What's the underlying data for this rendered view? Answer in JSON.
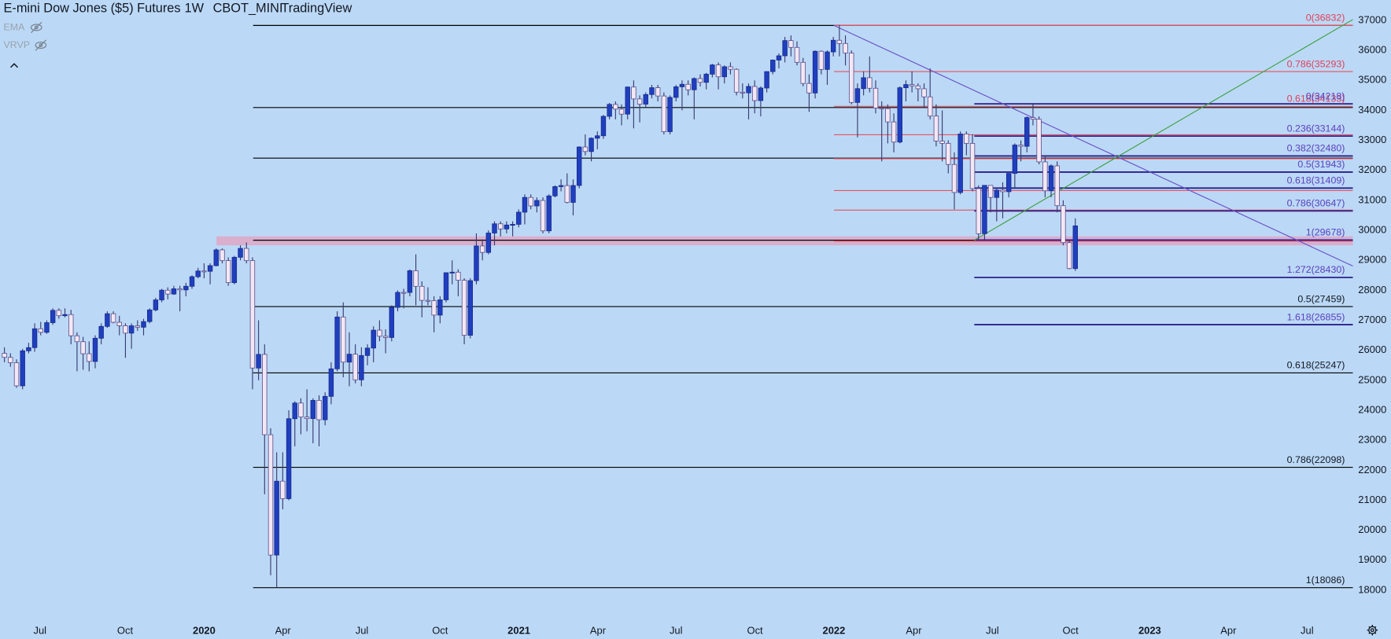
{
  "chart_data": {
    "type": "candlestick",
    "header": {
      "title": "E-mini Dow Jones ($5) Futures",
      "interval": "1W",
      "exchange": "CBOT_MINI",
      "source": "TradingView"
    },
    "indicators": [
      "EMA",
      "VRVP"
    ],
    "up_color": "#1f3fbf",
    "down_color": "#f3e7f3",
    "wick_color": "#3a3a70",
    "xlim": [
      -0.733,
      222.87
    ],
    "ylim": [
      17084,
      37680
    ],
    "xticks": [
      {
        "value": 5.87,
        "label": "Jul"
      },
      {
        "value": 19.94,
        "label": "Oct"
      },
      {
        "value": 33.0,
        "label": "2020"
      },
      {
        "value": 46.04,
        "label": "Apr"
      },
      {
        "value": 59.09,
        "label": "Jul"
      },
      {
        "value": 72.0,
        "label": "Oct"
      },
      {
        "value": 85.04,
        "label": "2021"
      },
      {
        "value": 98.09,
        "label": "Apr"
      },
      {
        "value": 111.0,
        "label": "Jul"
      },
      {
        "value": 124.05,
        "label": "Oct"
      },
      {
        "value": 137.1,
        "label": "2022"
      },
      {
        "value": 150.3,
        "label": "Apr"
      },
      {
        "value": 163.3,
        "label": "Jul"
      },
      {
        "value": 176.2,
        "label": "Oct"
      },
      {
        "value": 189.3,
        "label": "2023"
      },
      {
        "value": 202.3,
        "label": "Apr"
      },
      {
        "value": 215.3,
        "label": "Jul"
      }
    ],
    "yticks": [
      18000,
      19000,
      20000,
      21000,
      22000,
      23000,
      24000,
      25000,
      26000,
      27000,
      28000,
      29000,
      30000,
      31000,
      32000,
      33000,
      34000,
      35000,
      36000,
      37000
    ],
    "zones": [
      {
        "from": 29500,
        "to": 29800,
        "x_start": 35.05,
        "color": "#dfa6c6"
      }
    ],
    "trendlines": [
      {
        "x": [
          137.1,
          222.87
        ],
        "y": [
          36832,
          28810
        ],
        "color": "#6a4fc8"
      },
      {
        "x": [
          160.3,
          222.87
        ],
        "y": [
          29670,
          37030
        ],
        "color": "#3f9f3f"
      }
    ],
    "fib_sets": [
      {
        "color": "#000000",
        "label_color": "#131722",
        "x_start": 41.1,
        "levels": [
          {
            "value": 36832
          },
          {
            "value": 34095
          },
          {
            "value": 32408
          },
          {
            "value": 29671
          },
          {
            "value": 27459,
            "label": "0.5(27459)"
          },
          {
            "value": 25247,
            "label": "0.618(25247)"
          },
          {
            "value": 22098,
            "label": "0.786(22098)"
          },
          {
            "value": 18086,
            "label": "1(18086)"
          }
        ]
      },
      {
        "color": "#e8505f",
        "label_color": "#e0405a",
        "x_start": 137.1,
        "levels": [
          {
            "value": 36832,
            "label": "0(36832)"
          },
          {
            "value": 35293,
            "label": "0.786(35293)"
          },
          {
            "value": 34133,
            "label": "0.618(34133)"
          },
          {
            "value": 33188
          },
          {
            "value": 32390
          },
          {
            "value": 31326
          },
          {
            "value": 30676
          },
          {
            "value": 29640
          }
        ]
      },
      {
        "color": "#2b1f8a",
        "label_color": "#5b3fbf",
        "x_start": 160.3,
        "levels": [
          {
            "value": 34218,
            "label": "0(34218)"
          },
          {
            "value": 33144,
            "label": "0.236(33144)"
          },
          {
            "value": 32480,
            "label": "0.382(32480)"
          },
          {
            "value": 31943,
            "label": "0.5(31943)"
          },
          {
            "value": 31409,
            "label": "0.618(31409)"
          },
          {
            "value": 30647,
            "label": "0.786(30647)"
          },
          {
            "value": 29678,
            "label": "1(29678)"
          },
          {
            "value": 28430,
            "label": "1.272(28430)"
          },
          {
            "value": 26855,
            "label": "1.618(26855)"
          }
        ]
      }
    ],
    "ohlc": [
      [
        25900,
        26100,
        25600,
        25764
      ],
      [
        25764,
        25900,
        25450,
        25586
      ],
      [
        25586,
        25700,
        24750,
        24815
      ],
      [
        24815,
        26050,
        24700,
        25983
      ],
      [
        25983,
        26250,
        25900,
        26090
      ],
      [
        26090,
        26900,
        25950,
        26719
      ],
      [
        26719,
        26950,
        26500,
        26600
      ],
      [
        26600,
        27000,
        26550,
        26922
      ],
      [
        26922,
        27400,
        26850,
        27332
      ],
      [
        27332,
        27400,
        27050,
        27154
      ],
      [
        27154,
        27400,
        27100,
        27192
      ],
      [
        27192,
        27350,
        26200,
        26485
      ],
      [
        26485,
        26600,
        25300,
        26287
      ],
      [
        26287,
        26450,
        25350,
        25886
      ],
      [
        25886,
        26300,
        25300,
        25628
      ],
      [
        25628,
        26500,
        25400,
        26403
      ],
      [
        26403,
        26900,
        26200,
        26797
      ],
      [
        26797,
        27300,
        26750,
        27220
      ],
      [
        27220,
        27300,
        26900,
        26935
      ],
      [
        26935,
        27150,
        26500,
        26820
      ],
      [
        26820,
        26900,
        25750,
        26573
      ],
      [
        26573,
        26900,
        26050,
        26817
      ],
      [
        26817,
        27000,
        26650,
        26770
      ],
      [
        26770,
        27050,
        26500,
        26958
      ],
      [
        26958,
        27400,
        26900,
        27347
      ],
      [
        27347,
        27750,
        27300,
        27681
      ],
      [
        27681,
        28050,
        27600,
        28005
      ],
      [
        28005,
        28100,
        27700,
        27876
      ],
      [
        27876,
        28150,
        27850,
        28051
      ],
      [
        28051,
        28150,
        27300,
        28015
      ],
      [
        28015,
        28250,
        27800,
        28135
      ],
      [
        28135,
        28500,
        28050,
        28455
      ],
      [
        28455,
        28750,
        28400,
        28645
      ],
      [
        28645,
        28900,
        28400,
        28634
      ],
      [
        28634,
        28900,
        28200,
        28823
      ],
      [
        28823,
        29400,
        28800,
        29348
      ],
      [
        29348,
        29400,
        28900,
        28990
      ],
      [
        28990,
        29100,
        28150,
        28256
      ],
      [
        28256,
        29150,
        28200,
        29102
      ],
      [
        29102,
        29500,
        29000,
        29398
      ],
      [
        29398,
        29600,
        28900,
        28992
      ],
      [
        28992,
        29100,
        24700,
        25409
      ],
      [
        25409,
        27000,
        25000,
        25864
      ],
      [
        25864,
        26200,
        21200,
        23186
      ],
      [
        23186,
        23400,
        18500,
        19174
      ],
      [
        19174,
        22600,
        18086,
        21636
      ],
      [
        21636,
        22600,
        20700,
        21053
      ],
      [
        21053,
        24000,
        21000,
        23719
      ],
      [
        23719,
        24300,
        22800,
        24242
      ],
      [
        24242,
        24400,
        23200,
        23775
      ],
      [
        23775,
        24700,
        23300,
        23724
      ],
      [
        23724,
        24400,
        22900,
        24331
      ],
      [
        24331,
        24500,
        22800,
        23685
      ],
      [
        23685,
        24600,
        23500,
        24465
      ],
      [
        24465,
        25600,
        24200,
        25383
      ],
      [
        25383,
        27300,
        25300,
        27111
      ],
      [
        27111,
        27600,
        25100,
        25606
      ],
      [
        25606,
        26600,
        24800,
        25871
      ],
      [
        25871,
        26200,
        24900,
        25016
      ],
      [
        25016,
        26100,
        24800,
        25827
      ],
      [
        25827,
        26200,
        25500,
        26075
      ],
      [
        26075,
        26800,
        25600,
        26672
      ],
      [
        26672,
        27000,
        26300,
        26470
      ],
      [
        26470,
        26700,
        25900,
        26428
      ],
      [
        26428,
        27500,
        26300,
        27433
      ],
      [
        27433,
        28000,
        27300,
        27931
      ],
      [
        27931,
        28050,
        27400,
        27930
      ],
      [
        27930,
        28700,
        27800,
        28654
      ],
      [
        28654,
        29200,
        27500,
        28133
      ],
      [
        28133,
        28300,
        27100,
        27666
      ],
      [
        27666,
        28100,
        27500,
        27657
      ],
      [
        27657,
        27800,
        26600,
        27174
      ],
      [
        27174,
        27800,
        26900,
        27683
      ],
      [
        27683,
        28600,
        27600,
        28587
      ],
      [
        28587,
        29000,
        28200,
        28606
      ],
      [
        28606,
        28700,
        27800,
        28335
      ],
      [
        28335,
        28400,
        26200,
        26502
      ],
      [
        26502,
        28400,
        26400,
        28323
      ],
      [
        28323,
        29900,
        28200,
        29480
      ],
      [
        29480,
        29700,
        29000,
        29263
      ],
      [
        29263,
        30000,
        29200,
        29910
      ],
      [
        29910,
        30300,
        29500,
        30218
      ],
      [
        30218,
        30300,
        29800,
        30046
      ],
      [
        30046,
        30300,
        29900,
        30179
      ],
      [
        30179,
        30300,
        29800,
        30200
      ],
      [
        30200,
        30700,
        30100,
        30606
      ],
      [
        30606,
        31200,
        30200,
        31098
      ],
      [
        31098,
        31200,
        30700,
        30814
      ],
      [
        30814,
        31100,
        30600,
        30997
      ],
      [
        30997,
        31100,
        29900,
        29983
      ],
      [
        29983,
        31200,
        29900,
        31148
      ],
      [
        31148,
        31500,
        31100,
        31458
      ],
      [
        31458,
        31700,
        31300,
        31494
      ],
      [
        31494,
        31900,
        30900,
        30932
      ],
      [
        30932,
        31700,
        30500,
        31496
      ],
      [
        31496,
        32800,
        31400,
        32779
      ],
      [
        32779,
        33200,
        32500,
        32628
      ],
      [
        32628,
        33100,
        32300,
        33072
      ],
      [
        33072,
        33300,
        32700,
        33153
      ],
      [
        33153,
        33850,
        33050,
        33801
      ],
      [
        33801,
        34250,
        33700,
        34200
      ],
      [
        34200,
        34300,
        33700,
        34043
      ],
      [
        34043,
        34200,
        33500,
        33875
      ],
      [
        33875,
        34800,
        33700,
        34778
      ],
      [
        34778,
        35000,
        33400,
        34382
      ],
      [
        34382,
        34500,
        33600,
        34208
      ],
      [
        34208,
        34600,
        34100,
        34529
      ],
      [
        34529,
        34850,
        34400,
        34756
      ],
      [
        34756,
        34850,
        34300,
        34480
      ],
      [
        34480,
        34600,
        33200,
        33290
      ],
      [
        33290,
        34500,
        33200,
        34433
      ],
      [
        34433,
        34850,
        34300,
        34786
      ],
      [
        34786,
        35000,
        34000,
        34870
      ],
      [
        34870,
        35000,
        34500,
        34687
      ],
      [
        34687,
        35100,
        33700,
        35061
      ],
      [
        35061,
        35200,
        34800,
        34935
      ],
      [
        34935,
        35250,
        34700,
        35208
      ],
      [
        35208,
        35550,
        35100,
        35515
      ],
      [
        35515,
        35600,
        34700,
        35120
      ],
      [
        35120,
        35500,
        34900,
        35455
      ],
      [
        35455,
        35600,
        35200,
        35369
      ],
      [
        35369,
        35400,
        34500,
        34607
      ],
      [
        34607,
        34900,
        34400,
        34584
      ],
      [
        34584,
        34900,
        33700,
        34798
      ],
      [
        34798,
        35000,
        33900,
        34326
      ],
      [
        34326,
        34800,
        33800,
        34746
      ],
      [
        34746,
        35300,
        34600,
        35294
      ],
      [
        35294,
        35700,
        35200,
        35677
      ],
      [
        35677,
        35900,
        35400,
        35820
      ],
      [
        35820,
        36450,
        35600,
        36328
      ],
      [
        36328,
        36500,
        35800,
        36100
      ],
      [
        36100,
        36300,
        35500,
        35602
      ],
      [
        35602,
        35750,
        34800,
        34899
      ],
      [
        34899,
        35200,
        33950,
        34580
      ],
      [
        34580,
        36000,
        34400,
        35971
      ],
      [
        35971,
        36000,
        35200,
        35365
      ],
      [
        35365,
        36000,
        34850,
        35950
      ],
      [
        35950,
        36450,
        35800,
        36338
      ],
      [
        36338,
        36850,
        35800,
        36231
      ],
      [
        36231,
        36500,
        35500,
        35912
      ],
      [
        35912,
        36000,
        34200,
        34265
      ],
      [
        34265,
        34900,
        33100,
        34725
      ],
      [
        34725,
        35300,
        34500,
        35089
      ],
      [
        35089,
        35800,
        34600,
        34738
      ],
      [
        34738,
        35000,
        33900,
        34079
      ],
      [
        34079,
        34300,
        32300,
        34058
      ],
      [
        34058,
        34200,
        32900,
        33615
      ],
      [
        33615,
        33900,
        32600,
        32944
      ],
      [
        32944,
        34800,
        32900,
        34755
      ],
      [
        34755,
        35000,
        34300,
        34861
      ],
      [
        34861,
        35300,
        34600,
        34818
      ],
      [
        34818,
        34900,
        34300,
        34721
      ],
      [
        34721,
        34900,
        34100,
        34451
      ],
      [
        34451,
        35400,
        33700,
        33811
      ],
      [
        33811,
        34200,
        32800,
        32977
      ],
      [
        32977,
        34000,
        32300,
        32899
      ],
      [
        32899,
        33000,
        31900,
        32197
      ],
      [
        32197,
        32600,
        30700,
        31262
      ],
      [
        31262,
        33300,
        31200,
        33213
      ],
      [
        33213,
        33300,
        32500,
        32899
      ],
      [
        32899,
        33200,
        31300,
        31393
      ],
      [
        31393,
        31500,
        29700,
        29888
      ],
      [
        29888,
        31500,
        29700,
        31500
      ],
      [
        31500,
        31500,
        30600,
        31097
      ],
      [
        31097,
        31400,
        30300,
        31338
      ],
      [
        31338,
        31600,
        30400,
        31288
      ],
      [
        31288,
        31900,
        31100,
        31899
      ],
      [
        31899,
        32900,
        31400,
        32845
      ],
      [
        32845,
        33000,
        32300,
        32803
      ],
      [
        32803,
        33800,
        32600,
        33761
      ],
      [
        33761,
        34200,
        33500,
        33706
      ],
      [
        33706,
        33800,
        32200,
        32283
      ],
      [
        32283,
        32500,
        31100,
        31318
      ],
      [
        31318,
        32200,
        31100,
        32151
      ],
      [
        32151,
        32300,
        30600,
        30822
      ],
      [
        30822,
        31000,
        29500,
        29590
      ],
      [
        29590,
        29700,
        28700,
        28725
      ],
      [
        28725,
        30400,
        28650,
        30150
      ]
    ]
  }
}
